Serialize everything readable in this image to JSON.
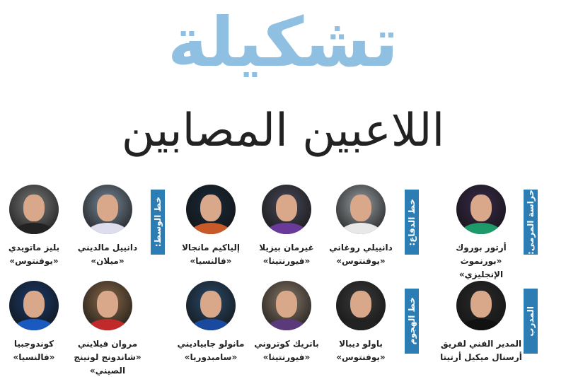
{
  "title": "تشكيلة",
  "subtitle": "اللاعبين المصابين",
  "colors": {
    "title": "#8fc0e2",
    "label_bg": "#2c7db4"
  },
  "sections": {
    "goalkeeper": "حراسة المرمى:",
    "defense": "خط الدفاع:",
    "midfield": "خط الوسط:",
    "coach": "المدرب",
    "attack": "خط الهجوم"
  },
  "players": [
    {
      "name": "أرتور بوروك",
      "club": "«بورنموث الإنجليزي»"
    },
    {
      "name": "دانييلي روغاني",
      "club": "«يوفنتوس»"
    },
    {
      "name": "غيرمان بيزيلا",
      "club": "«فيورنتينا»"
    },
    {
      "name": "إلياكيم مانجالا",
      "club": "«فالنسيا»"
    },
    {
      "name": "دانييل مالديني",
      "club": "«ميلان»"
    },
    {
      "name": "بليز ماتويدي",
      "club": "«يوفنتوس»"
    },
    {
      "name": "المدير الفني لفريق",
      "club": "أرسنال ميكيل أرتيتا"
    },
    {
      "name": "باولو ديبالا",
      "club": "«يوفنتوس»"
    },
    {
      "name": "باتريك كوتروني",
      "club": "«فيورنتينا»"
    },
    {
      "name": "مانولو جابياديني",
      "club": "«سامبدوريا»"
    },
    {
      "name": "مروان فيلايني",
      "club": "«شاندونج لونينج الصيني»"
    },
    {
      "name": "كوندوجبيا",
      "club": "«فالنسيا»"
    }
  ]
}
